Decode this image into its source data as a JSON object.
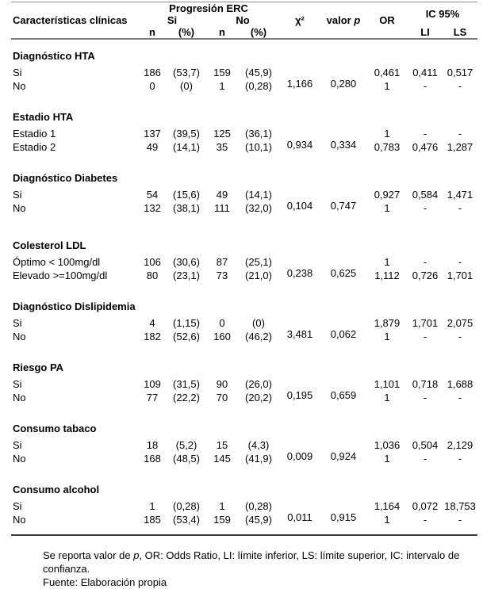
{
  "table": {
    "header": {
      "caracteristicas": "Características clínicas",
      "progresion_erc": "Progresión ERC",
      "si": "Si",
      "no": "No",
      "n": "n",
      "pct": "(%)",
      "chi2": "χ²",
      "valor": "valor",
      "p": "p",
      "or": "OR",
      "ic95": "IC 95%",
      "li": "LI",
      "ls": "LS"
    },
    "groups": [
      {
        "title": "Diagnóstico HTA",
        "chi2": "1,166",
        "p": "0,280",
        "rows": [
          {
            "label": "Si",
            "n_si": "186",
            "pct_si": "(53,7)",
            "n_no": "159",
            "pct_no": "(45,9)",
            "or": "0,461",
            "li": "0,411",
            "ls": "0,517"
          },
          {
            "label": "No",
            "n_si": "0",
            "pct_si": "(0)",
            "n_no": "1",
            "pct_no": "(0,28)",
            "or": "1",
            "li": "-",
            "ls": "-"
          }
        ]
      },
      {
        "title": "Estadio HTA",
        "chi2": "0,934",
        "p": "0,334",
        "rows": [
          {
            "label": "Estadio 1",
            "n_si": "137",
            "pct_si": "(39,5)",
            "n_no": "125",
            "pct_no": "(36,1)",
            "or": "1",
            "li": "-",
            "ls": "-"
          },
          {
            "label": "Estadio 2",
            "n_si": "49",
            "pct_si": "(14,1)",
            "n_no": "35",
            "pct_no": "(10,1)",
            "or": "0,783",
            "li": "0,476",
            "ls": "1,287"
          }
        ]
      },
      {
        "title": "Diagnóstico Diabetes",
        "chi2": "0,104",
        "p": "0,747",
        "rows": [
          {
            "label": "Si",
            "n_si": "54",
            "pct_si": "(15,6)",
            "n_no": "49",
            "pct_no": "(14,1)",
            "or": "0,927",
            "li": "0,584",
            "ls": "1,471"
          },
          {
            "label": "No",
            "n_si": "132",
            "pct_si": "(38,1)",
            "n_no": "111",
            "pct_no": "(32,0)",
            "or": "1",
            "li": "-",
            "ls": "-"
          }
        ]
      },
      {
        "title": "Colesterol LDL",
        "chi2": "0,238",
        "p": "0,625",
        "rows": [
          {
            "label": "Óptimo < 100mg/dl",
            "n_si": "106",
            "pct_si": "(30,6)",
            "n_no": "87",
            "pct_no": "(25,1)",
            "or": "1",
            "li": "-",
            "ls": "-"
          },
          {
            "label": "Elevado >=100mg/dl",
            "n_si": "80",
            "pct_si": "(23,1)",
            "n_no": "73",
            "pct_no": "(21,0)",
            "or": "1,112",
            "li": "0,726",
            "ls": "1,701"
          }
        ]
      },
      {
        "title": "Diagnóstico Dislipidemia",
        "chi2": "3,481",
        "p": "0,062",
        "rows": [
          {
            "label": "Si",
            "n_si": "4",
            "pct_si": "(1,15)",
            "n_no": "0",
            "pct_no": "(0)",
            "or": "1,879",
            "li": "1,701",
            "ls": "2,075"
          },
          {
            "label": "No",
            "n_si": "182",
            "pct_si": "(52,6)",
            "n_no": "160",
            "pct_no": "(46,2)",
            "or": "1",
            "li": "-",
            "ls": "-"
          }
        ]
      },
      {
        "title": "Riesgo PA",
        "chi2": "0,195",
        "p": "0,659",
        "rows": [
          {
            "label": "Si",
            "n_si": "109",
            "pct_si": "(31,5)",
            "n_no": "90",
            "pct_no": "(26,0)",
            "or": "1,101",
            "li": "0,718",
            "ls": "1,688"
          },
          {
            "label": "No",
            "n_si": "77",
            "pct_si": "(22,2)",
            "n_no": "70",
            "pct_no": "(20,2)",
            "or": "1",
            "li": "-",
            "ls": "-"
          }
        ]
      },
      {
        "title": "Consumo tabaco",
        "chi2": "0,009",
        "p": "0,924",
        "rows": [
          {
            "label": "Si",
            "n_si": "18",
            "pct_si": "(5,2)",
            "n_no": "15",
            "pct_no": "(4,3)",
            "or": "1,036",
            "li": "0,504",
            "ls": "2,129"
          },
          {
            "label": "No",
            "n_si": "168",
            "pct_si": "(48,5)",
            "n_no": "145",
            "pct_no": "(41,9)",
            "or": "1",
            "li": "-",
            "ls": "-"
          }
        ]
      },
      {
        "title": "Consumo alcohol",
        "chi2": "0,011",
        "p": "0,915",
        "rows": [
          {
            "label": "Si",
            "n_si": "1",
            "pct_si": "(0,28)",
            "n_no": "1",
            "pct_no": "(0,28)",
            "or": "1,164",
            "li": "0,072",
            "ls": "18,753"
          },
          {
            "label": "No",
            "n_si": "185",
            "pct_si": "(53,4)",
            "n_no": "159",
            "pct_no": "(45,9)",
            "or": "1",
            "li": "-",
            "ls": "-"
          }
        ]
      }
    ]
  },
  "footnote": {
    "prefix": "Se reporta valor de ",
    "p": "p",
    "suffix": ", OR: Odds Ratio, LI: límite inferior, LS: límite superior, IC: intervalo de confianza.",
    "fuente": "Fuente: Elaboración propia"
  }
}
